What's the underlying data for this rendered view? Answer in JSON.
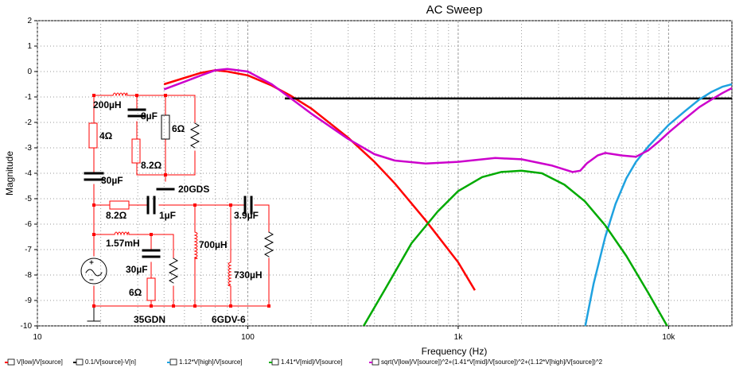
{
  "chart_data": {
    "type": "line",
    "title": "AC Sweep",
    "xlabel": "Frequency (Hz)",
    "ylabel": "Magnitude",
    "xscale": "log",
    "xlim": [
      10,
      20000
    ],
    "ylim": [
      -10,
      2
    ],
    "grid": true,
    "x_tick_labels": [
      {
        "value": 10,
        "label": "10"
      },
      {
        "value": 100,
        "label": "100"
      },
      {
        "value": 1000,
        "label": "1k"
      },
      {
        "value": 10000,
        "label": "10k"
      }
    ],
    "y_ticks": [
      2,
      1,
      0,
      -1,
      -2,
      -3,
      -4,
      -5,
      -6,
      -7,
      -8,
      -9,
      -10
    ],
    "legend_position": "bottom",
    "series": [
      {
        "name": "V[low]/V[source]",
        "color": "#ff0000",
        "x": [
          40,
          50,
          60,
          70,
          80,
          100,
          130,
          160,
          200,
          300,
          400,
          500,
          700,
          1000,
          1200
        ],
        "y": [
          -0.5,
          -0.25,
          -0.05,
          0.05,
          0.0,
          -0.15,
          -0.55,
          -0.95,
          -1.45,
          -2.6,
          -3.55,
          -4.4,
          -5.85,
          -7.5,
          -8.6
        ]
      },
      {
        "name": "0.1/V[source]-V[n]",
        "color": "#000000",
        "x": [
          150,
          20000
        ],
        "y": [
          -1.06,
          -1.06
        ]
      },
      {
        "name": "1.12*V[high]/V[source]",
        "color": "#1fa2e0",
        "x": [
          4000,
          4400,
          5000,
          5600,
          6300,
          7000,
          8000,
          9000,
          10000,
          12000,
          14000,
          16000,
          18000,
          20000
        ],
        "y": [
          -10.1,
          -8.35,
          -6.5,
          -5.2,
          -4.2,
          -3.55,
          -2.95,
          -2.5,
          -2.1,
          -1.55,
          -1.1,
          -0.8,
          -0.6,
          -0.5
        ]
      },
      {
        "name": "1.41*V[mid]/V[source]",
        "color": "#00aa00",
        "x": [
          350,
          450,
          600,
          800,
          1000,
          1300,
          1600,
          2000,
          2500,
          3200,
          4000,
          5000,
          6300,
          8000,
          10000
        ],
        "y": [
          -10.1,
          -8.55,
          -6.75,
          -5.5,
          -4.7,
          -4.15,
          -3.95,
          -3.9,
          -4.0,
          -4.45,
          -5.1,
          -6.05,
          -7.25,
          -8.7,
          -10.1
        ]
      },
      {
        "name": "sqrt(V[low]/V[source])^2+(1.41*V[mid]/V[source])^2+(1.12*V[high]/V[source])^2",
        "color": "#cc00cc",
        "x": [
          40,
          50,
          60,
          70,
          80,
          100,
          130,
          160,
          200,
          300,
          400,
          500,
          700,
          1000,
          1500,
          2000,
          2800,
          3500,
          3800,
          4100,
          4600,
          5000,
          6000,
          7000,
          8000,
          9000,
          10000,
          12000,
          14000,
          16000,
          18000,
          20000
        ],
        "y": [
          -0.7,
          -0.4,
          -0.15,
          0.05,
          0.1,
          0.0,
          -0.5,
          -1.05,
          -1.65,
          -2.65,
          -3.25,
          -3.5,
          -3.62,
          -3.55,
          -3.4,
          -3.45,
          -3.7,
          -3.95,
          -3.9,
          -3.6,
          -3.3,
          -3.2,
          -3.3,
          -3.35,
          -3.1,
          -2.75,
          -2.4,
          -1.85,
          -1.4,
          -1.1,
          -0.85,
          -0.65
        ]
      }
    ]
  },
  "schematic": {
    "labels": {
      "l1": "200µH",
      "c1": "8µF",
      "r_top": "6Ω",
      "r1": "4Ω",
      "r2": "8.2Ω",
      "c2": "30µF",
      "driver1": "20GDS",
      "r3": "8.2Ω",
      "c3": "1µF",
      "c4": "3.9µF",
      "l2": "1.57mH",
      "l3": "700µH",
      "c5": "30µF",
      "l4": "730µH",
      "r4": "6Ω",
      "driver2": "35GDN",
      "driver3": "6GDV-6"
    }
  }
}
